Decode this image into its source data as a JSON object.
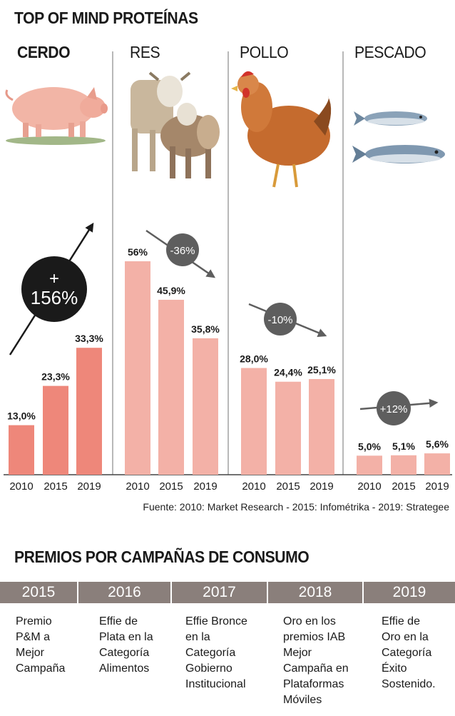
{
  "title": "TOP OF MIND PROTEÍNAS",
  "chart_data": {
    "type": "bar",
    "categories": [
      "2010",
      "2015",
      "2019"
    ],
    "ylim": [
      0,
      60
    ],
    "groups": [
      {
        "name": "CERDO",
        "values": [
          13.0,
          23.3,
          33.3
        ],
        "labels": [
          "13,0%",
          "23,3%",
          "33,3%"
        ],
        "change": "+ 156%",
        "change_direction": "up",
        "icon": "pig-icon"
      },
      {
        "name": "RES",
        "values": [
          56.0,
          45.9,
          35.8
        ],
        "labels": [
          "56%",
          "45,9%",
          "35,8%"
        ],
        "change": "-36%",
        "change_direction": "down",
        "icon": "cows-icon"
      },
      {
        "name": "POLLO",
        "values": [
          28.0,
          24.4,
          25.1
        ],
        "labels": [
          "28,0%",
          "24,4%",
          "25,1%"
        ],
        "change": "-10%",
        "change_direction": "down",
        "icon": "chicken-icon"
      },
      {
        "name": "PESCADO",
        "values": [
          5.0,
          5.1,
          5.6
        ],
        "labels": [
          "5,0%",
          "5,1%",
          "5,6%"
        ],
        "change": "+12%",
        "change_direction": "up",
        "icon": "fish-icon"
      }
    ],
    "colors": {
      "bar": "#f3b1a7",
      "bar_highlight": "#ee877a",
      "badge_dark": "#1a1a1a",
      "badge_grey": "#5e5e5e",
      "divider": "#888888"
    }
  },
  "source": "Fuente: 2010: Market Research - 2015: Infométrika - 2019: Strategee",
  "awards": {
    "title": "PREMIOS POR CAMPAÑAS DE CONSUMO",
    "items": [
      {
        "year": "2015",
        "lines": [
          "Premio",
          "P&M a",
          "Mejor",
          "Campaña"
        ]
      },
      {
        "year": "2016",
        "lines": [
          "Effie de",
          "Plata en la",
          "Categoría",
          "Alimentos"
        ]
      },
      {
        "year": "2017",
        "lines": [
          "Effie Bronce",
          "en la",
          "Categoría",
          "Gobierno",
          "Institucional"
        ]
      },
      {
        "year": "2018",
        "lines": [
          "Oro en los",
          "premios IAB",
          "Mejor",
          "Campaña en",
          "Plataformas",
          "Móviles"
        ]
      },
      {
        "year": "2019",
        "lines": [
          "Effie de",
          "Oro en la",
          "Categoría",
          "Éxito",
          "Sostenido."
        ]
      }
    ]
  }
}
